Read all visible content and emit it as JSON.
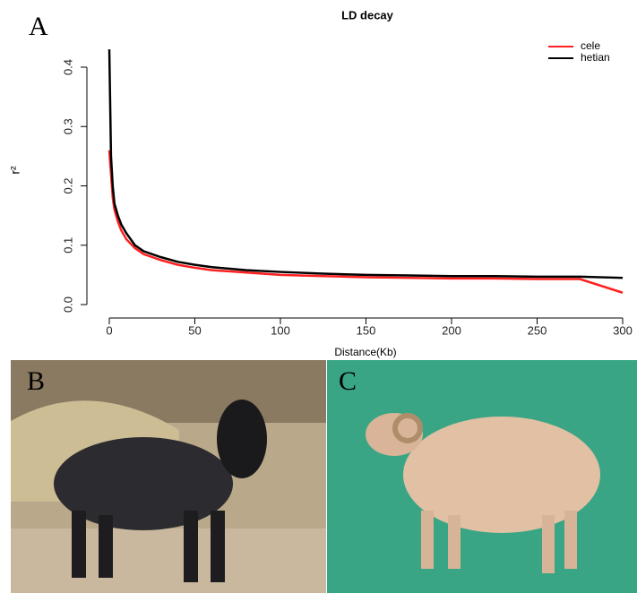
{
  "chart_data": {
    "type": "line",
    "title": "LD decay",
    "xlabel": "Distance(Kb)",
    "ylabel": "r²",
    "x": [
      0,
      1,
      2,
      3,
      5,
      7,
      10,
      15,
      20,
      30,
      40,
      50,
      60,
      80,
      100,
      125,
      150,
      175,
      200,
      225,
      250,
      275,
      300
    ],
    "series": [
      {
        "name": "cele",
        "color": "#ff2020",
        "values": [
          0.26,
          0.22,
          0.18,
          0.16,
          0.14,
          0.125,
          0.11,
          0.095,
          0.085,
          0.075,
          0.067,
          0.062,
          0.058,
          0.054,
          0.05,
          0.048,
          0.046,
          0.045,
          0.044,
          0.044,
          0.043,
          0.043,
          0.02
        ]
      },
      {
        "name": "hetian",
        "color": "#000000",
        "values": [
          0.43,
          0.25,
          0.2,
          0.17,
          0.15,
          0.135,
          0.12,
          0.1,
          0.09,
          0.08,
          0.072,
          0.067,
          0.063,
          0.058,
          0.055,
          0.052,
          0.05,
          0.049,
          0.048,
          0.048,
          0.047,
          0.047,
          0.045
        ]
      }
    ],
    "xlim": [
      0,
      300
    ],
    "xticks": [
      0,
      50,
      100,
      150,
      200,
      250,
      300
    ],
    "ylim": [
      0,
      0.4
    ],
    "yticks": [
      {
        "value": 0,
        "label": "0.0"
      },
      0.1,
      0.2,
      0.3,
      0.4
    ],
    "legend": "top-right"
  },
  "panel_labels": [
    "A",
    "B",
    "C"
  ]
}
